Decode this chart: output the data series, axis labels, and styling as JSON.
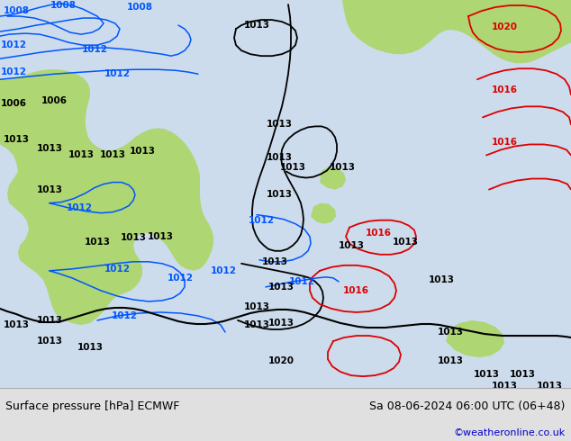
{
  "title_left": "Surface pressure [hPa] ECMWF",
  "title_right": "Sa 08-06-2024 06:00 UTC (06+48)",
  "credit": "©weatheronline.co.uk",
  "bg_color": "#e0e0e0",
  "sea_color": "#ccdcec",
  "green_color": "#aed672",
  "isobar_blue": "#0055ff",
  "isobar_black": "#000000",
  "isobar_red": "#dd0000",
  "footer_text_color": "#000000",
  "credit_color": "#0000cc",
  "figsize": [
    6.34,
    4.9
  ],
  "dpi": 100
}
